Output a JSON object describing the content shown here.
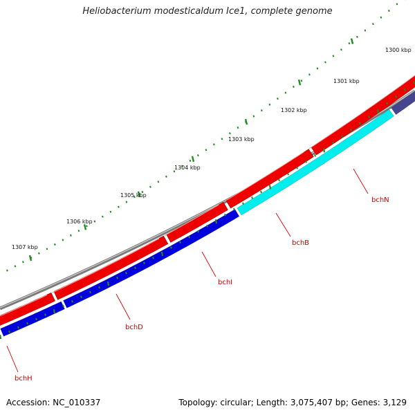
{
  "title": "Heliobacterium modesticaldum Ice1, complete genome",
  "footer": {
    "accession": "Accession: NC_010337",
    "stats": "Topology: circular; Length: 3,075,407 bp; Genes: 3,129"
  },
  "colors": {
    "backbone": "#7a7a7a",
    "forward_cds": "#ee0000",
    "ticks": "#1f8a1f",
    "label_line": "#dd0000",
    "bchH": "#0000dd",
    "bchD": "#0000dd",
    "bchI": "#0000dd",
    "bchB": "#00eeee",
    "bchN": "#44448f"
  },
  "scale_labels": [
    "1300 kbp",
    "1301 kbp",
    "1302 kbp",
    "1303 kbp",
    "1304 kbp",
    "1305 kbp",
    "1306 kbp",
    "1307 kbp"
  ],
  "genes": [
    {
      "label": "bchH",
      "color_key": "bchH"
    },
    {
      "label": "bchD",
      "color_key": "bchD"
    },
    {
      "label": "bchI",
      "color_key": "bchI"
    },
    {
      "label": "bchB",
      "color_key": "bchB"
    },
    {
      "label": "bchN",
      "color_key": "bchN"
    }
  ]
}
